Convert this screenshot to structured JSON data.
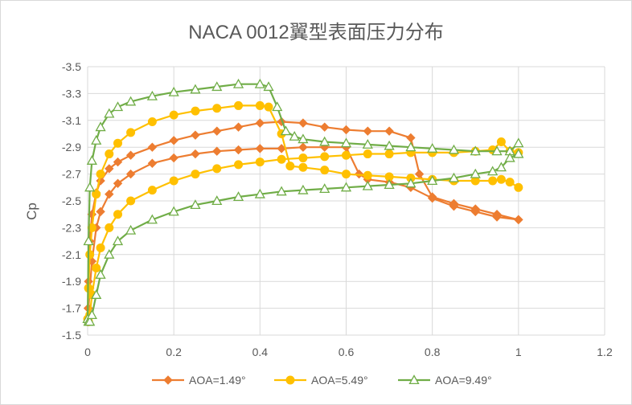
{
  "chart_data": {
    "type": "line",
    "title": "NACA 0012翼型表面压力分布",
    "xlabel": "",
    "ylabel": "Cp",
    "xlim": [
      0,
      1.2
    ],
    "ylim": [
      -1.5,
      -3.5
    ],
    "y_inverted": true,
    "x_ticks": [
      "0",
      "0.2",
      "0.4",
      "0.6",
      "0.8",
      "1",
      "1.2"
    ],
    "y_ticks": [
      "-3.5",
      "-3.3",
      "-3.1",
      "-2.9",
      "-2.7",
      "-2.5",
      "-2.3",
      "-2.1",
      "-1.9",
      "-1.7",
      "-1.5"
    ],
    "grid": true,
    "legend_position": "bottom",
    "series": [
      {
        "name": "AOA=1.49°",
        "color": "#ed7d31",
        "marker": "diamond",
        "x": [
          1.0,
          0.95,
          0.9,
          0.85,
          0.8,
          0.77,
          0.75,
          0.7,
          0.65,
          0.6,
          0.55,
          0.5,
          0.45,
          0.4,
          0.35,
          0.3,
          0.25,
          0.2,
          0.15,
          0.1,
          0.07,
          0.05,
          0.03,
          0.02,
          0.01,
          0.005,
          0.002,
          0.001,
          0.0,
          0.001,
          0.002,
          0.005,
          0.01,
          0.02,
          0.03,
          0.05,
          0.07,
          0.1,
          0.15,
          0.2,
          0.25,
          0.3,
          0.35,
          0.4,
          0.45,
          0.5,
          0.55,
          0.6,
          0.63,
          0.65,
          0.7,
          0.75,
          0.8,
          0.85,
          0.9,
          0.95,
          1.0
        ],
        "y": [
          -2.36,
          -2.4,
          -2.44,
          -2.48,
          -2.53,
          -2.7,
          -2.97,
          -3.02,
          -3.02,
          -3.03,
          -3.05,
          -3.08,
          -3.09,
          -3.08,
          -3.05,
          -3.02,
          -2.99,
          -2.95,
          -2.9,
          -2.84,
          -2.79,
          -2.74,
          -2.65,
          -2.56,
          -2.4,
          -2.2,
          -1.9,
          -1.7,
          -1.6,
          -1.62,
          -1.7,
          -1.85,
          -2.05,
          -2.3,
          -2.42,
          -2.55,
          -2.63,
          -2.7,
          -2.78,
          -2.82,
          -2.85,
          -2.87,
          -2.88,
          -2.89,
          -2.89,
          -2.9,
          -2.9,
          -2.9,
          -2.7,
          -2.66,
          -2.64,
          -2.6,
          -2.52,
          -2.46,
          -2.42,
          -2.38,
          -2.36
        ]
      },
      {
        "name": "AOA=5.49°",
        "color": "#ffc000",
        "marker": "circle",
        "x": [
          1.0,
          0.98,
          0.96,
          0.94,
          0.9,
          0.85,
          0.8,
          0.75,
          0.7,
          0.65,
          0.6,
          0.55,
          0.5,
          0.47,
          0.45,
          0.42,
          0.4,
          0.35,
          0.3,
          0.25,
          0.2,
          0.15,
          0.1,
          0.07,
          0.05,
          0.03,
          0.02,
          0.01,
          0.005,
          0.002,
          0.0,
          0.002,
          0.005,
          0.01,
          0.02,
          0.03,
          0.05,
          0.07,
          0.1,
          0.15,
          0.2,
          0.25,
          0.3,
          0.35,
          0.4,
          0.45,
          0.5,
          0.55,
          0.6,
          0.65,
          0.7,
          0.75,
          0.8,
          0.85,
          0.9,
          0.94,
          0.96,
          0.98,
          1.0
        ],
        "y": [
          -2.6,
          -2.64,
          -2.66,
          -2.65,
          -2.65,
          -2.65,
          -2.66,
          -2.67,
          -2.68,
          -2.69,
          -2.7,
          -2.73,
          -2.75,
          -2.76,
          -3.0,
          -3.2,
          -3.21,
          -3.21,
          -3.19,
          -3.17,
          -3.14,
          -3.09,
          -3.01,
          -2.93,
          -2.85,
          -2.7,
          -2.55,
          -2.3,
          -2.1,
          -1.85,
          -1.62,
          -1.6,
          -1.65,
          -1.8,
          -2.0,
          -2.15,
          -2.3,
          -2.4,
          -2.5,
          -2.58,
          -2.65,
          -2.7,
          -2.74,
          -2.77,
          -2.79,
          -2.81,
          -2.82,
          -2.83,
          -2.84,
          -2.85,
          -2.85,
          -2.86,
          -2.86,
          -2.86,
          -2.87,
          -2.88,
          -2.94,
          -2.87,
          -2.86
        ]
      },
      {
        "name": "AOA=9.49°",
        "color": "#70ad47",
        "marker": "triangle",
        "x": [
          1.0,
          0.98,
          0.95,
          0.9,
          0.85,
          0.8,
          0.75,
          0.7,
          0.65,
          0.6,
          0.55,
          0.5,
          0.48,
          0.46,
          0.44,
          0.42,
          0.4,
          0.35,
          0.3,
          0.25,
          0.2,
          0.15,
          0.1,
          0.07,
          0.05,
          0.03,
          0.02,
          0.01,
          0.005,
          0.002,
          0.0,
          0.002,
          0.005,
          0.01,
          0.02,
          0.03,
          0.05,
          0.07,
          0.1,
          0.15,
          0.2,
          0.25,
          0.3,
          0.35,
          0.4,
          0.45,
          0.5,
          0.55,
          0.6,
          0.65,
          0.7,
          0.75,
          0.8,
          0.85,
          0.9,
          0.94,
          0.96,
          0.98,
          1.0
        ],
        "y": [
          -2.93,
          -2.87,
          -2.87,
          -2.87,
          -2.88,
          -2.89,
          -2.9,
          -2.91,
          -2.92,
          -2.93,
          -2.94,
          -2.96,
          -2.98,
          -3.02,
          -3.2,
          -3.35,
          -3.37,
          -3.37,
          -3.35,
          -3.33,
          -3.31,
          -3.28,
          -3.24,
          -3.2,
          -3.15,
          -3.05,
          -2.95,
          -2.8,
          -2.6,
          -2.2,
          -1.62,
          -1.6,
          -1.6,
          -1.65,
          -1.8,
          -1.95,
          -2.1,
          -2.2,
          -2.28,
          -2.36,
          -2.42,
          -2.47,
          -2.5,
          -2.53,
          -2.55,
          -2.57,
          -2.58,
          -2.59,
          -2.6,
          -2.61,
          -2.62,
          -2.63,
          -2.65,
          -2.67,
          -2.7,
          -2.72,
          -2.75,
          -2.82,
          -2.85
        ]
      }
    ]
  }
}
